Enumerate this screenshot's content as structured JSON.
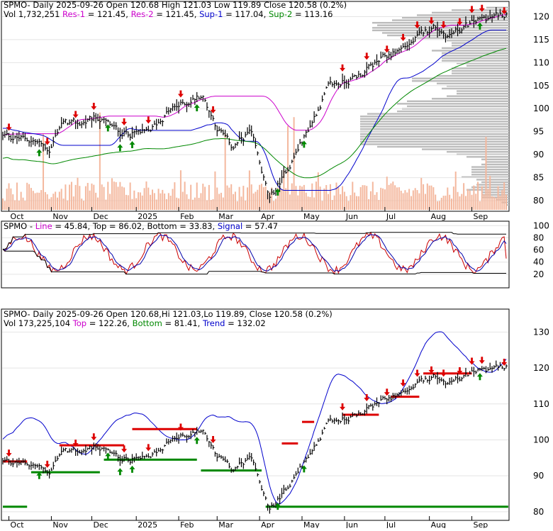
{
  "colors": {
    "price": "#000000",
    "volume": "#f4b89e",
    "profile": "#bcbcbc",
    "res": "#cc00cc",
    "sup1": "#0000cc",
    "sup2": "#008800",
    "up": "#008800",
    "down": "#dd0000",
    "osc_line": "#cc0000",
    "osc_signal": "#0000aa",
    "trend": "#0000cc"
  },
  "panel1": {
    "ticker": "SPMO",
    "header": "- Daily 2025-09-26 Open 120.68  High 121.03  Low 119.89  Close 120.58 (0.2%)",
    "vol": "Vol 1,732,251",
    "res1_label": "Res-1",
    "res1_value": "= 121.45",
    "res2_label": "Res-2",
    "res2_value": "= 121.45",
    "sup1_label": "Sup-1",
    "sup1_value": "= 117.04",
    "sup2_label": "Sup-2",
    "sup2_value": "= 113.16",
    "y_ticks": [
      "120",
      "115",
      "110",
      "105",
      "100",
      "95",
      "90",
      "85",
      "80"
    ]
  },
  "panel2": {
    "ticker": "SPMO",
    "line_label": "Line",
    "line_value": "= 45.84",
    "top_label": "Top",
    "top_value": "= 86.02",
    "bottom_label": "Bottom",
    "bottom_value": "= 33.83",
    "signal_label": "Signal",
    "signal_value": "= 57.47",
    "y_ticks": [
      "100",
      "80",
      "60",
      "40",
      "20"
    ]
  },
  "panel3": {
    "ticker": "SPMO",
    "header": "- Daily 2025-09-26 Open 120.68,Hi 121.03,Lo 119.89,  Close 120.58 (0.2%)",
    "vol": "Vol 173,225,104",
    "top_label": "Top",
    "top_value": "= 122.26",
    "bottom_label": "Bottom",
    "bottom_value": "= 81.41",
    "trend_label": "Trend",
    "trend_value": "= 132.02",
    "y_ticks": [
      "130",
      "120",
      "110",
      "100",
      "90",
      "80"
    ]
  },
  "x_axis": {
    "labels": [
      "Oct",
      "Nov",
      "Dec",
      "2025",
      "Feb",
      "Mar",
      "Apr",
      "May",
      "Jun",
      "Jul",
      "Aug",
      "Sep"
    ]
  },
  "chart_data": [
    {
      "type": "line",
      "title": "SPMO - Daily 2025-09-26",
      "description_source": "price bars with volume and volume-by-price profile, support/resistance",
      "x": [
        "2024-10",
        "2024-11",
        "2024-12",
        "2025-01",
        "2025-02",
        "2025-03",
        "2025-04",
        "2025-05",
        "2025-06",
        "2025-07",
        "2025-08",
        "2025-09"
      ],
      "price_keypoints": [
        {
          "x": "2024-10-01",
          "y": 94.0
        },
        {
          "x": "2024-10-20",
          "y": 93.0
        },
        {
          "x": "2024-10-31",
          "y": 91.0
        },
        {
          "x": "2024-11-08",
          "y": 97.0
        },
        {
          "x": "2024-11-20",
          "y": 96.5
        },
        {
          "x": "2024-12-05",
          "y": 98.0
        },
        {
          "x": "2024-12-20",
          "y": 95.0
        },
        {
          "x": "2025-01-10",
          "y": 94.5
        },
        {
          "x": "2025-01-25",
          "y": 99.5
        },
        {
          "x": "2025-02-18",
          "y": 103.0
        },
        {
          "x": "2025-03-01",
          "y": 96.0
        },
        {
          "x": "2025-03-12",
          "y": 91.5
        },
        {
          "x": "2025-03-25",
          "y": 95.0
        },
        {
          "x": "2025-04-08",
          "y": 80.0
        },
        {
          "x": "2025-04-20",
          "y": 86.5
        },
        {
          "x": "2025-05-05",
          "y": 95.0
        },
        {
          "x": "2025-05-20",
          "y": 104.5
        },
        {
          "x": "2025-06-10",
          "y": 107.0
        },
        {
          "x": "2025-06-30",
          "y": 111.0
        },
        {
          "x": "2025-07-20",
          "y": 114.5
        },
        {
          "x": "2025-08-05",
          "y": 118.0
        },
        {
          "x": "2025-08-15",
          "y": 116.0
        },
        {
          "x": "2025-09-05",
          "y": 119.0
        },
        {
          "x": "2025-09-26",
          "y": 120.58
        }
      ],
      "ylim": [
        78,
        123
      ],
      "open": 120.68,
      "high": 121.03,
      "low": 119.89,
      "close": 120.58,
      "change_pct": 0.2,
      "volume": 1732251,
      "res1": 121.45,
      "res2": 121.45,
      "sup1": 117.04,
      "sup2": 113.16
    },
    {
      "type": "line",
      "title": "SPMO oscillator",
      "ylim": [
        0,
        100
      ],
      "line": 45.84,
      "top": 86.02,
      "bottom": 33.83,
      "signal": 57.47
    },
    {
      "type": "line",
      "title": "SPMO - Daily 2025-09-26 trend",
      "ylim": [
        78,
        136
      ],
      "open": 120.68,
      "high": 121.03,
      "low": 119.89,
      "close": 120.58,
      "change_pct": 0.2,
      "volume": 173225104,
      "top": 122.26,
      "bottom": 81.41,
      "trend": 132.02
    }
  ]
}
